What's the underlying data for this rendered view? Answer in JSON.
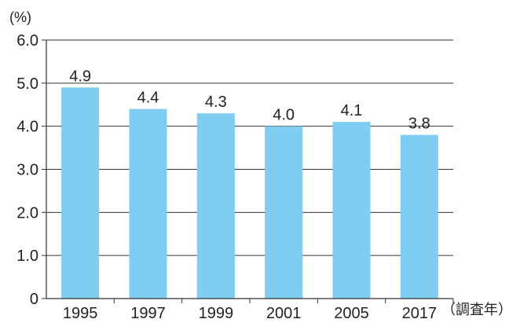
{
  "chart_data": {
    "type": "bar",
    "categories": [
      "1995",
      "1997",
      "1999",
      "2001",
      "2005",
      "2017"
    ],
    "values": [
      4.9,
      4.4,
      4.3,
      4.0,
      4.1,
      3.8
    ],
    "data_labels": [
      "4.9",
      "4.4",
      "4.3",
      "4.0",
      "4.1",
      "3.8"
    ],
    "ylabel": "(%)",
    "xlabel": "（調査年）",
    "ylim": [
      0,
      6.0
    ],
    "yticks": [
      0,
      1.0,
      2.0,
      3.0,
      4.0,
      5.0,
      6.0
    ],
    "ytick_labels": [
      "0",
      "1.0",
      "2.0",
      "3.0",
      "4.0",
      "5.0",
      "6.0"
    ],
    "grid": true,
    "legend": "none",
    "bar_color": "#7fcdf1",
    "axis_color": "#333333"
  }
}
